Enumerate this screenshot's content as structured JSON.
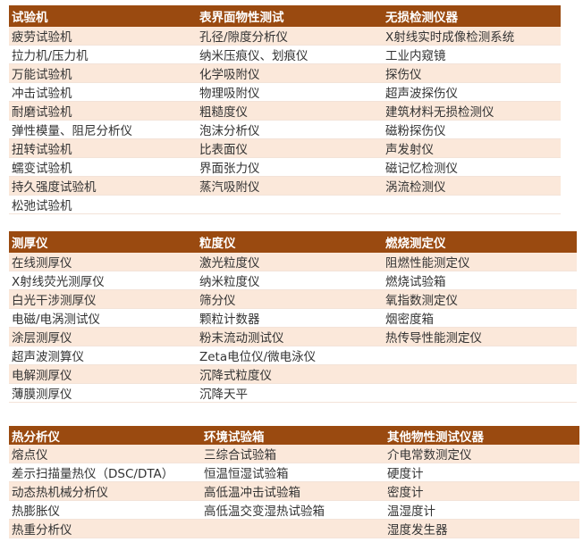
{
  "colors": {
    "header_bg": "#9a4a10",
    "row_alt_bg": "#fbe8da",
    "row_bg": "#ffffff"
  },
  "tables": [
    {
      "headers": [
        "试验机",
        "表界面物性测试",
        "无损检测仪器"
      ],
      "rows": [
        [
          "疲劳试验机",
          "孔径/隙度分析仪",
          "X射线实时成像检测系统"
        ],
        [
          "拉力机/压力机",
          "纳米压痕仪、划痕仪",
          "工业内窥镜"
        ],
        [
          "万能试验机",
          "化学吸附仪",
          "探伤仪"
        ],
        [
          "冲击试验机",
          "物理吸附仪",
          "超声波探伤仪"
        ],
        [
          "耐磨试验机",
          "粗糙度仪",
          "建筑材料无损检测仪"
        ],
        [
          "弹性模量、阻尼分析仪",
          "泡沫分析仪",
          "磁粉探伤仪"
        ],
        [
          "扭转试验机",
          "比表面仪",
          "声发射仪"
        ],
        [
          "蠕变试验机",
          "界面张力仪",
          "磁记忆检测仪"
        ],
        [
          "持久强度试验机",
          "蒸汽吸附仪",
          "涡流检测仪"
        ],
        [
          "松弛试验机",
          "",
          ""
        ]
      ]
    },
    {
      "headers": [
        "测厚仪",
        "粒度仪",
        "燃烧测定仪"
      ],
      "rows": [
        [
          "在线测厚仪",
          "激光粒度仪",
          "阻燃性能测定仪"
        ],
        [
          "X射线荧光测厚仪",
          "纳米粒度仪",
          "燃烧试验箱"
        ],
        [
          "白光干涉测厚仪",
          "筛分仪",
          "氧指数测定仪"
        ],
        [
          "电磁/电涡测试仪",
          "颗粒计数器",
          "烟密度箱"
        ],
        [
          "涂层测厚仪",
          "粉末流动测试仪",
          "热传导性能测定仪"
        ],
        [
          "超声波测算仪",
          "Zeta电位仪/微电泳仪",
          ""
        ],
        [
          "电解测厚仪",
          "沉降式粒度仪",
          ""
        ],
        [
          "薄膜测厚仪",
          "沉降天平",
          ""
        ]
      ]
    },
    {
      "headers": [
        "热分析仪",
        "环境试验箱",
        "其他物性测试仪器"
      ],
      "rows": [
        [
          "熔点仪",
          "三综合试验箱",
          "介电常数测定仪"
        ],
        [
          "差示扫描量热仪（DSC/DTA）",
          "恒温恒湿试验箱",
          "硬度计"
        ],
        [
          "动态热机械分析仪",
          "高低温冲击试验箱",
          "密度计"
        ],
        [
          "热膨胀仪",
          "高低温交变湿热试验箱",
          "温湿度计"
        ],
        [
          "热重分析仪",
          "",
          "湿度发生器"
        ]
      ]
    }
  ]
}
